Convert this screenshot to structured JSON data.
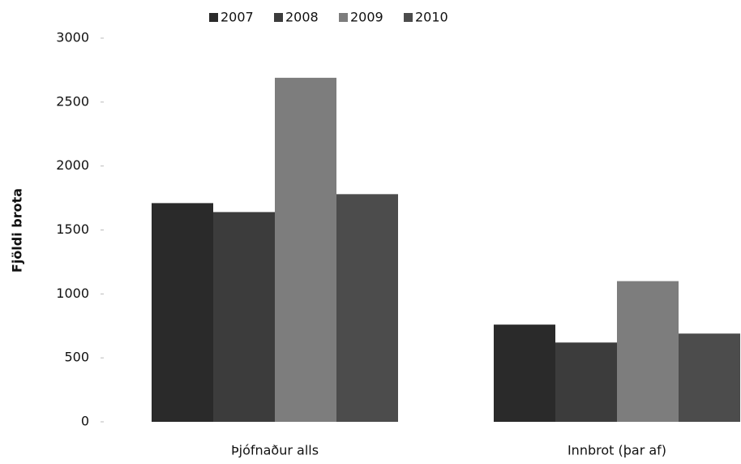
{
  "chart_data": {
    "type": "bar",
    "y_label": "Fjöldi brota",
    "categories": [
      "Þjófnaður alls",
      "Innbrot (þar af)"
    ],
    "series": [
      {
        "name": "2007",
        "color": "#2a2a2a",
        "values": [
          1710,
          760
        ]
      },
      {
        "name": "2008",
        "color": "#3c3c3c",
        "values": [
          1640,
          620
        ]
      },
      {
        "name": "2009",
        "color": "#7d7d7d",
        "values": [
          2690,
          1100
        ]
      },
      {
        "name": "2010",
        "color": "#4c4c4c",
        "values": [
          1780,
          690
        ]
      }
    ],
    "ylim": [
      0,
      3000
    ],
    "yticks": [
      0,
      500,
      1000,
      1500,
      2000,
      2500,
      3000
    ],
    "legend": "top",
    "grid": false
  }
}
